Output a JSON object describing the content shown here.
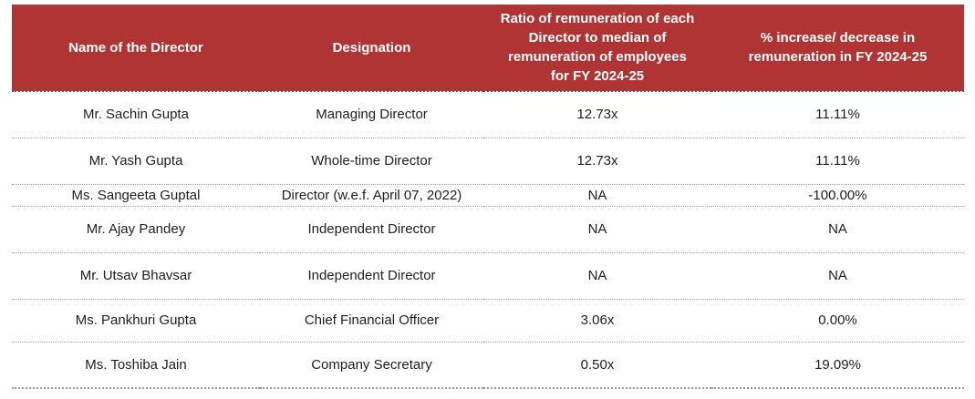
{
  "colors": {
    "header_bg": "#B13434",
    "header_text": "#FFFFFF",
    "body_text": "#1E1E1E",
    "row_separator": "#A3A3A3"
  },
  "table": {
    "columns": [
      {
        "id": "name",
        "label": "Name of the Director",
        "lines": [
          "Name of the Director"
        ]
      },
      {
        "id": "designation",
        "label": "Designation",
        "lines": [
          "Designation"
        ]
      },
      {
        "id": "ratio",
        "label": "Ratio of remuneration of each Director to median of remuneration of employees for FY 2024-25",
        "lines": [
          "Ratio of remuneration of each",
          "Director to median of",
          "remuneration of employees",
          "for FY 2024-25"
        ]
      },
      {
        "id": "change",
        "label": "% increase/ decrease in remuneration in FY 2024-25",
        "lines": [
          "% increase/ decrease in",
          "remuneration in FY 2024-25"
        ]
      }
    ],
    "rows": [
      {
        "name": "Mr. Sachin Gupta",
        "designation": "Managing Director",
        "ratio": "12.73x",
        "change": "11.11%"
      },
      {
        "name": "Mr. Yash Gupta",
        "designation": "Whole-time Director",
        "ratio": "12.73x",
        "change": "11.11%"
      },
      {
        "name": "Ms. Sangeeta Guptal",
        "designation": "Director (w.e.f. April 07, 2022)",
        "ratio": "NA",
        "change": "-100.00%"
      },
      {
        "name": "Mr. Ajay Pandey",
        "designation": "Independent Director",
        "ratio": "NA",
        "change": "NA"
      },
      {
        "name": "Mr. Utsav Bhavsar",
        "designation": "Independent Director",
        "ratio": "NA",
        "change": "NA"
      },
      {
        "name": "Ms. Pankhuri Gupta",
        "designation": "Chief Financial Officer",
        "ratio": "3.06x",
        "change": "0.00%"
      },
      {
        "name": "Ms. Toshiba Jain",
        "designation": "Company Secretary",
        "ratio": "0.50x",
        "change": "19.09%"
      }
    ]
  }
}
